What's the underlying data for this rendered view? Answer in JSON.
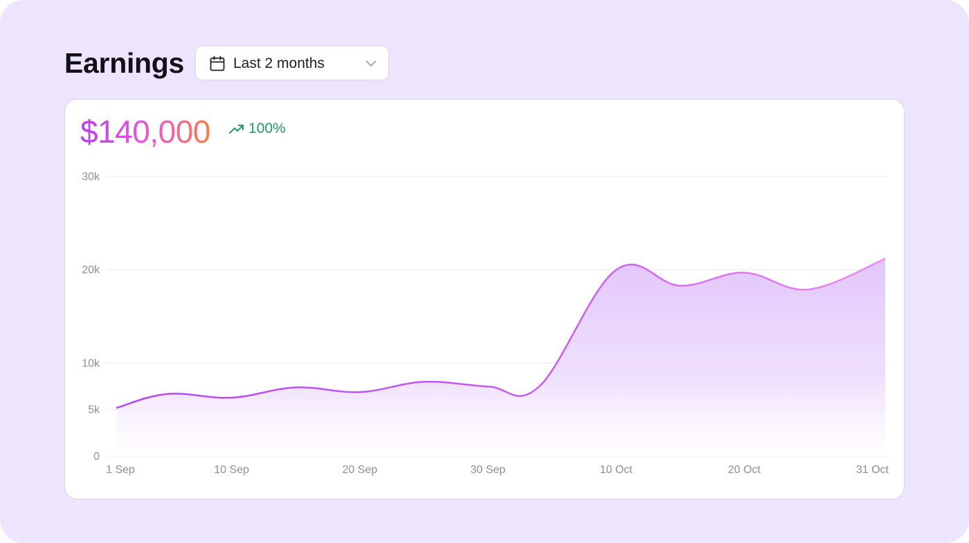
{
  "header": {
    "title": "Earnings",
    "range_label": "Last 2 months"
  },
  "summary": {
    "total": "$140,000",
    "change": "100%"
  },
  "colors": {
    "background": "#ede4fe",
    "line": "#c95ef6",
    "fill": "#e2c6fb",
    "trend": "#1e9a6b"
  },
  "icons": {
    "range": "calendar-icon",
    "dropdown": "chevron-down-icon",
    "trend": "trending-up-icon"
  },
  "chart_data": {
    "type": "area",
    "x": [
      "1 Sep",
      "5 Sep",
      "10 Sep",
      "15 Sep",
      "20 Sep",
      "25 Sep",
      "30 Sep",
      "4 Oct",
      "10 Oct",
      "15 Oct",
      "20 Oct",
      "25 Oct",
      "31 Oct"
    ],
    "values": [
      5200,
      6700,
      6300,
      7400,
      6900,
      8000,
      7500,
      7500,
      20000,
      18300,
      19700,
      17900,
      21200
    ],
    "x_tick_labels": [
      "1 Sep",
      "10 Sep",
      "20 Sep",
      "30 Sep",
      "10 Oct",
      "20 Oct",
      "31 Oct"
    ],
    "y_ticks": [
      0,
      5000,
      10000,
      20000,
      30000
    ],
    "y_tick_labels": [
      "0",
      "5k",
      "10k",
      "20k",
      "30k"
    ],
    "ylim": [
      0,
      30000
    ],
    "grid": true,
    "legend": "none"
  }
}
